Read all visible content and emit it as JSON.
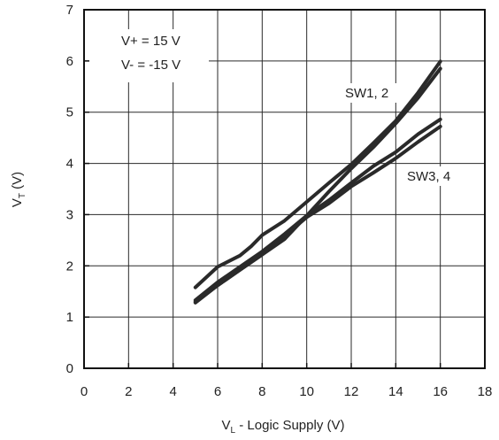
{
  "chart_data": {
    "type": "line",
    "xlabel": {
      "main": "V",
      "sub": "L",
      "rest": " - Logic Supply (V)"
    },
    "ylabel": {
      "main": "V",
      "sub": "T",
      "rest": " (V)"
    },
    "xlim": [
      0,
      18
    ],
    "ylim": [
      0,
      7
    ],
    "xticks": [
      0,
      2,
      4,
      6,
      8,
      10,
      12,
      14,
      16,
      18
    ],
    "yticks": [
      0,
      1,
      2,
      3,
      4,
      5,
      6,
      7
    ],
    "grid": true,
    "series": [
      {
        "group": "SW1, 2",
        "x": [
          5,
          6,
          7,
          7.5,
          8,
          9,
          10,
          11,
          12,
          13,
          14,
          15,
          16
        ],
        "y": [
          1.58,
          1.98,
          2.2,
          2.38,
          2.6,
          2.88,
          3.25,
          3.62,
          3.98,
          4.4,
          4.83,
          5.38,
          5.99
        ]
      },
      {
        "group": "SW1, 2",
        "x": [
          5,
          6,
          7,
          8,
          9,
          10,
          11,
          12,
          13,
          14,
          15,
          16
        ],
        "y": [
          1.28,
          1.62,
          1.92,
          2.22,
          2.52,
          2.98,
          3.45,
          3.9,
          4.32,
          4.78,
          5.28,
          5.85
        ]
      },
      {
        "group": "SW3, 4",
        "x": [
          5,
          6,
          7,
          8,
          9,
          10,
          11,
          12,
          13,
          14,
          15,
          16
        ],
        "y": [
          1.33,
          1.68,
          1.98,
          2.28,
          2.62,
          2.98,
          3.28,
          3.62,
          3.95,
          4.22,
          4.57,
          4.86
        ]
      },
      {
        "group": "SW3, 4",
        "x": [
          5,
          6,
          7,
          8,
          9,
          10,
          11,
          12,
          13,
          14,
          15,
          16
        ],
        "y": [
          1.3,
          1.62,
          1.92,
          2.22,
          2.58,
          2.95,
          3.22,
          3.55,
          3.82,
          4.1,
          4.42,
          4.72
        ]
      }
    ],
    "annotations": {
      "conditions": [
        "V+ = 15 V",
        "V- = -15 V"
      ],
      "label_sw12": "SW1, 2",
      "label_sw34": "SW3, 4"
    },
    "colors": {
      "line": "#2a2a2a",
      "grid": "#2a2a2a",
      "axis": "#111111"
    }
  }
}
